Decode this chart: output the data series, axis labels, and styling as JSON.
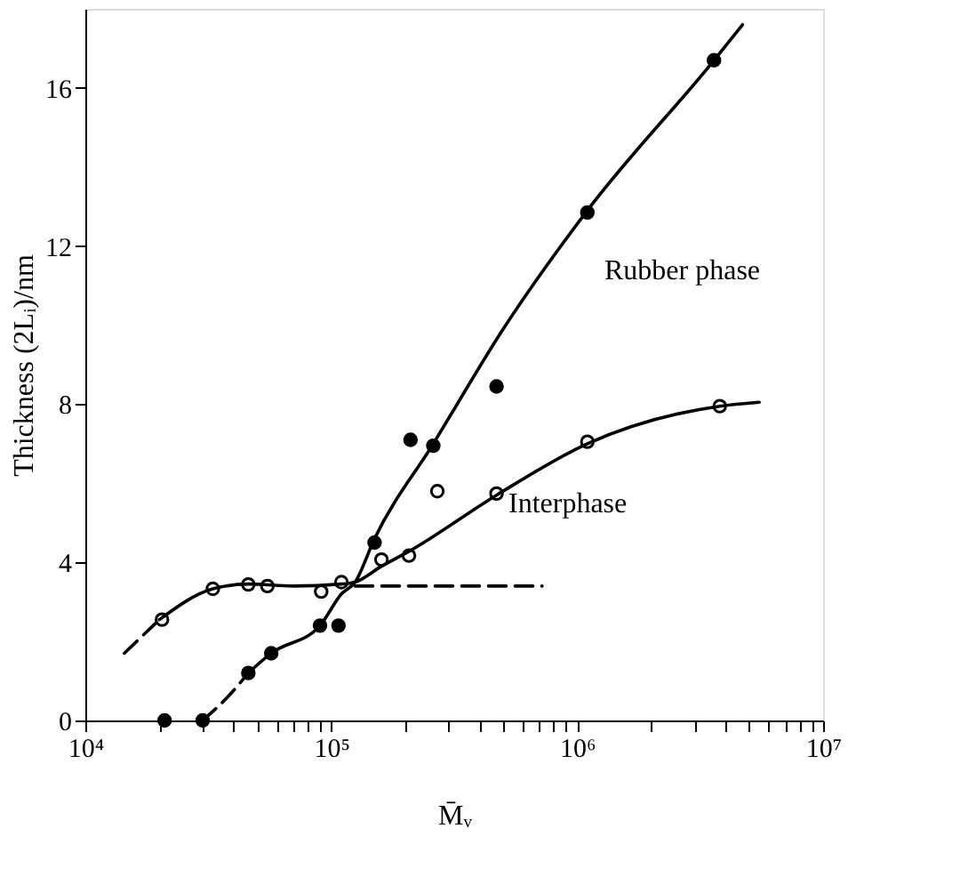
{
  "chart_data": {
    "type": "line",
    "xlabel": "M̄ᵥ",
    "ylabel": "Thickness (2Lᵢ)/nm",
    "log": "x",
    "grid": false,
    "xlim": [
      10000,
      10000000
    ],
    "ylim": [
      0,
      18
    ],
    "xticks": [
      {
        "value": 10000,
        "label": "10⁴"
      },
      {
        "value": 20000,
        "label": null
      },
      {
        "value": 30000,
        "label": null
      },
      {
        "value": 40000,
        "label": null
      },
      {
        "value": 50000,
        "label": null
      },
      {
        "value": 60000,
        "label": null
      },
      {
        "value": 70000,
        "label": null
      },
      {
        "value": 80000,
        "label": null
      },
      {
        "value": 90000,
        "label": null
      },
      {
        "value": 100000,
        "label": "10⁵"
      },
      {
        "value": 200000,
        "label": null
      },
      {
        "value": 300000,
        "label": null
      },
      {
        "value": 400000,
        "label": null
      },
      {
        "value": 500000,
        "label": null
      },
      {
        "value": 600000,
        "label": null
      },
      {
        "value": 700000,
        "label": null
      },
      {
        "value": 800000,
        "label": null
      },
      {
        "value": 900000,
        "label": null
      },
      {
        "value": 1000000,
        "label": "10⁶"
      },
      {
        "value": 2000000,
        "label": null
      },
      {
        "value": 3000000,
        "label": null
      },
      {
        "value": 4000000,
        "label": null
      },
      {
        "value": 5000000,
        "label": null
      },
      {
        "value": 6000000,
        "label": null
      },
      {
        "value": 7000000,
        "label": null
      },
      {
        "value": 8000000,
        "label": null
      },
      {
        "value": 9000000,
        "label": null
      },
      {
        "value": 10000000,
        "label": "10⁷"
      }
    ],
    "yticks": [
      0,
      4,
      8,
      12,
      16
    ],
    "series": [
      {
        "color": "#000000",
        "line_style": "dashed",
        "x": [
          30000,
          38000,
          46000
        ],
        "values": [
          0,
          0.6,
          1.2
        ]
      },
      {
        "color": "#000000",
        "line_style": "solid",
        "x": [
          46000,
          57000,
          90000,
          110000,
          125000,
          150000,
          260000,
          500000,
          1100000,
          3600000,
          4700000
        ],
        "values": [
          1.2,
          1.7,
          2.4,
          3.2,
          3.5,
          4.6,
          7.0,
          9.9,
          12.9,
          16.7,
          17.6
        ]
      },
      {
        "color": "#000000",
        "line_style": "dashed",
        "x": [
          14400,
          20000
        ],
        "values": [
          1.7,
          2.55
        ]
      },
      {
        "color": "#000000",
        "line_style": "solid",
        "x": [
          20000,
          33000,
          46000,
          70000,
          110000,
          125000,
          160000,
          210000,
          470000,
          1100000,
          3800000,
          5500000
        ],
        "values": [
          2.55,
          3.33,
          3.45,
          3.4,
          3.45,
          3.5,
          3.9,
          4.3,
          5.7,
          7.0,
          7.95,
          8.05
        ]
      },
      {
        "color": "#000000",
        "line_style": "dashed",
        "x": [
          125000,
          720000
        ],
        "values": [
          3.4,
          3.4
        ]
      },
      {
        "type": "scatter",
        "color": "#000000",
        "marker": "circle",
        "x": [
          21000,
          30000,
          46000,
          57000,
          90000,
          107000,
          150000,
          210000,
          260000,
          470000,
          1100000,
          3600000
        ],
        "values": [
          0,
          0,
          1.2,
          1.7,
          2.4,
          2.4,
          4.5,
          7.1,
          6.95,
          8.45,
          12.85,
          16.7
        ]
      },
      {
        "type": "scatter",
        "color": "#ffffff",
        "marker": "circle",
        "x": [
          20500,
          33000,
          46000,
          55000,
          91000,
          110000,
          160000,
          207000,
          270000,
          470000,
          1100000,
          3800000
        ],
        "values": [
          2.55,
          3.33,
          3.44,
          3.4,
          3.26,
          3.5,
          4.07,
          4.17,
          5.8,
          5.74,
          7.05,
          7.95
        ]
      }
    ],
    "annotations": [
      "Rubber phase",
      "Interphase"
    ]
  }
}
